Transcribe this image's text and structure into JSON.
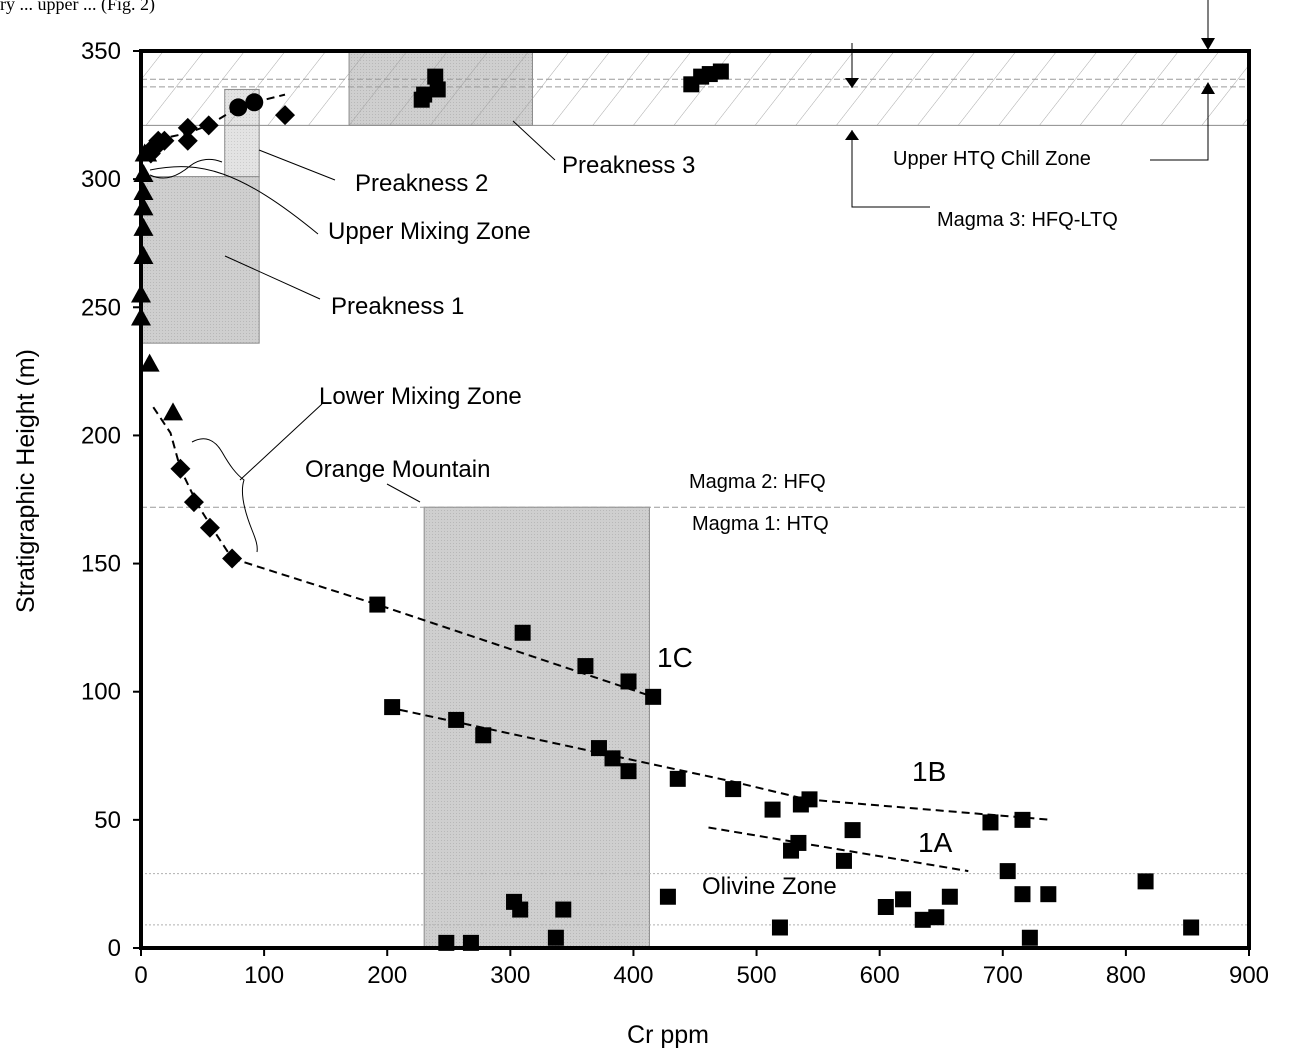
{
  "caption_fragment": "ry         ...       upper          ...      (Fig. 2)",
  "chart_data": {
    "type": "scatter",
    "title": "",
    "xlabel": "Cr ppm",
    "ylabel": "Stratigraphic Height (m)",
    "xlim": [
      0,
      900
    ],
    "ylim": [
      0,
      350
    ],
    "xticks": [
      0,
      100,
      200,
      300,
      400,
      500,
      600,
      700,
      800,
      900
    ],
    "yticks": [
      0,
      50,
      100,
      150,
      200,
      250,
      300,
      350
    ],
    "grid": false,
    "colors": {
      "marker": "#000000",
      "shade": "#c8c8c8",
      "shade_light": "#e0e0e0",
      "hatch": "#9a9a9a"
    },
    "series": [
      {
        "marker": "square",
        "points": [
          [
            248,
            2
          ],
          [
            268,
            2
          ],
          [
            337,
            4
          ],
          [
            722,
            4
          ],
          [
            853,
            8
          ],
          [
            519,
            8
          ],
          [
            635,
            11
          ],
          [
            646,
            12
          ],
          [
            605,
            16
          ],
          [
            308,
            15
          ],
          [
            343,
            15
          ],
          [
            303,
            18
          ],
          [
            619,
            19
          ],
          [
            428,
            20
          ],
          [
            657,
            20
          ],
          [
            716,
            21
          ],
          [
            737,
            21
          ],
          [
            816,
            26
          ],
          [
            704,
            30
          ],
          [
            571,
            34
          ],
          [
            528,
            38
          ],
          [
            534,
            41
          ],
          [
            578,
            46
          ],
          [
            690,
            49
          ],
          [
            716,
            50
          ],
          [
            513,
            54
          ],
          [
            536,
            56
          ],
          [
            543,
            58
          ],
          [
            481,
            62
          ],
          [
            436,
            66
          ],
          [
            396,
            69
          ],
          [
            383,
            74
          ],
          [
            372,
            78
          ],
          [
            278,
            83
          ],
          [
            256,
            89
          ],
          [
            204,
            94
          ],
          [
            416,
            98
          ],
          [
            396,
            104
          ],
          [
            361,
            110
          ],
          [
            310,
            123
          ],
          [
            192,
            134
          ],
          [
            241,
            335
          ],
          [
            447,
            337
          ],
          [
            455,
            340
          ],
          [
            462,
            341
          ],
          [
            471,
            342
          ],
          [
            239,
            340
          ],
          [
            228,
            331
          ],
          [
            230,
            333
          ]
        ]
      },
      {
        "marker": "diamond",
        "points": [
          [
            74,
            152
          ],
          [
            56,
            164
          ],
          [
            43,
            174
          ],
          [
            32,
            187
          ],
          [
            7,
            311
          ],
          [
            8,
            310
          ],
          [
            11,
            312
          ],
          [
            14,
            315
          ],
          [
            19,
            315
          ],
          [
            38,
            315
          ],
          [
            38,
            320
          ],
          [
            55,
            321
          ],
          [
            117,
            325
          ]
        ]
      },
      {
        "marker": "circle",
        "points": [
          [
            79,
            328
          ],
          [
            92,
            330
          ]
        ]
      },
      {
        "marker": "triangle",
        "points": [
          [
            26,
            209
          ],
          [
            7,
            228
          ],
          [
            0,
            246
          ],
          [
            0,
            255
          ],
          [
            2,
            270
          ],
          [
            2,
            281
          ],
          [
            2,
            289
          ],
          [
            2,
            295
          ],
          [
            2,
            302
          ],
          [
            3,
            310
          ],
          [
            5,
            310
          ]
        ]
      }
    ],
    "trend_lines": [
      {
        "label": "1A",
        "points": [
          [
            461,
            47
          ],
          [
            672,
            30
          ]
        ]
      },
      {
        "label": "1B",
        "points": [
          [
            200,
            94
          ],
          [
            480,
            65
          ],
          [
            541,
            58
          ],
          [
            740,
            50
          ]
        ]
      },
      {
        "label": "1C",
        "points": [
          [
            74,
            152
          ],
          [
            192,
            134
          ],
          [
            416,
            98
          ]
        ]
      },
      {
        "label": "",
        "points": [
          [
            10,
            211
          ],
          [
            24,
            201
          ],
          [
            32,
            187
          ],
          [
            46,
            173
          ],
          [
            59,
            163
          ],
          [
            74,
            152
          ]
        ]
      },
      {
        "label": "",
        "points": [
          [
            7,
            311
          ],
          [
            19,
            316
          ],
          [
            38,
            318
          ],
          [
            55,
            321
          ],
          [
            79,
            328
          ],
          [
            92,
            330
          ],
          [
            117,
            333
          ]
        ]
      }
    ],
    "regions": [
      {
        "name": "Orange Mountain",
        "x": [
          230,
          413
        ],
        "y": [
          0,
          172
        ]
      },
      {
        "name": "Preakness 1",
        "x": [
          0,
          96
        ],
        "y": [
          236,
          301
        ]
      },
      {
        "name": "Preakness 2",
        "x": [
          68,
          96
        ],
        "y": [
          301,
          335
        ]
      },
      {
        "name": "Preakness 3",
        "x": [
          169,
          318
        ],
        "y": [
          321,
          350
        ]
      }
    ],
    "reference_lines": [
      {
        "y": 172,
        "style": "dashed"
      },
      {
        "y": 339,
        "style": "dashed"
      },
      {
        "y": 336,
        "style": "dashed"
      },
      {
        "y": 29,
        "style": "dotted"
      },
      {
        "y": 9,
        "style": "dotted"
      }
    ],
    "hatched_band": {
      "y": [
        321,
        350
      ]
    },
    "annotations": {
      "preakness_3": "Preakness 3",
      "preakness_2": "Preakness 2",
      "upper_mixing_zone": "Upper Mixing Zone",
      "preakness_1": "Preakness 1",
      "lower_mixing_zone": "Lower Mixing Zone",
      "orange_mountain": "Orange Mountain",
      "magma_2": "Magma 2:  HFQ",
      "magma_1": "Magma 1: HTQ",
      "upper_htq_chill_zone": "Upper HTQ Chill Zone",
      "magma_3": "Magma 3: HFQ-LTQ",
      "olivine_zone": "Olivine Zone",
      "label_1a": "1A",
      "label_1b": "1B",
      "label_1c": "1C"
    }
  }
}
